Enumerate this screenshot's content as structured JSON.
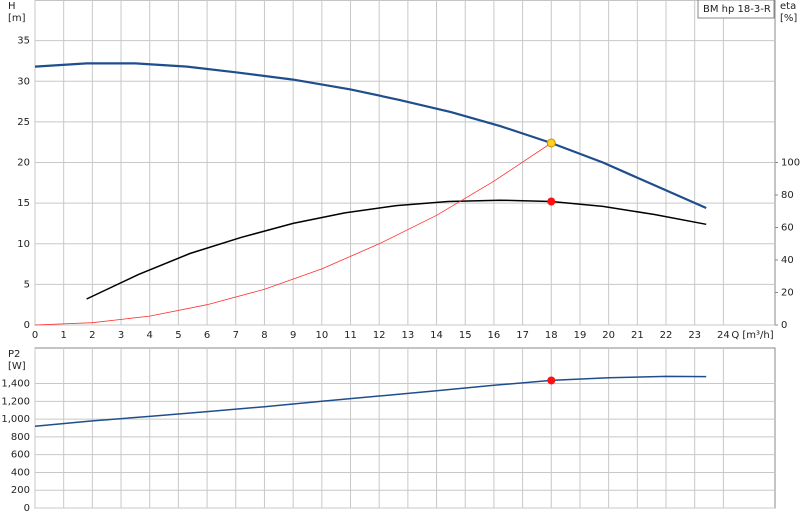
{
  "chart_data": [
    {
      "type": "line",
      "title": "BM hp  18-3-R",
      "y_label": "H",
      "y_unit": "[m]",
      "y2_label": "eta",
      "y2_unit": "[%]",
      "x_label": "Q [m³/h]",
      "xlim": [
        0,
        25.8
      ],
      "xticks": [
        0,
        1,
        2,
        3,
        4,
        5,
        6,
        7,
        8,
        9,
        10,
        11,
        12,
        13,
        14,
        15,
        16,
        17,
        18,
        19,
        20,
        21,
        22,
        23,
        24
      ],
      "ylim": [
        0,
        40
      ],
      "yticks": [
        0,
        5,
        10,
        15,
        20,
        25,
        30,
        35
      ],
      "y2lim": [
        0,
        200
      ],
      "y2ticks": [
        0,
        20,
        40,
        60,
        80,
        100
      ],
      "grid": true,
      "series": [
        {
          "color": "#1f4e8c",
          "width": 2.2,
          "x": [
            0,
            1.8,
            3.5,
            5.3,
            7,
            9,
            11,
            12.7,
            14.5,
            16.2,
            18,
            19.8,
            21.6,
            23.4
          ],
          "values": [
            31.8,
            32.2,
            32.2,
            31.8,
            31.1,
            30.2,
            29,
            27.7,
            26.2,
            24.5,
            22.4,
            20,
            17.2,
            14.4
          ]
        },
        {
          "color": "#000000",
          "width": 1.5,
          "axis": "y2",
          "x": [
            1.8,
            3.6,
            5.4,
            7.2,
            9,
            10.8,
            12.6,
            14.4,
            16.2,
            18,
            19.8,
            21.6,
            23.4
          ],
          "values": [
            16,
            31,
            44,
            54,
            62.5,
            69,
            73.5,
            76,
            76.8,
            76,
            73,
            68,
            62
          ]
        },
        {
          "color": "#ff3030",
          "width": 0.8,
          "x": [
            0,
            2,
            4,
            6,
            8,
            10,
            12,
            14,
            16,
            18
          ],
          "values": [
            0,
            0.28,
            1.1,
            2.5,
            4.4,
            6.9,
            10,
            13.5,
            17.7,
            22.4
          ]
        }
      ],
      "markers": [
        {
          "x": 18,
          "y": 22.4,
          "color": "#ffd21f"
        },
        {
          "x": 18,
          "y": 76,
          "axis": "y2",
          "color": "#ff1010"
        }
      ]
    },
    {
      "type": "line",
      "y_label": "P2",
      "y_unit": "[W]",
      "xlim": [
        0,
        25.8
      ],
      "xticks": [
        0,
        1,
        2,
        3,
        4,
        5,
        6,
        7,
        8,
        9,
        10,
        11,
        12,
        13,
        14,
        15,
        16,
        17,
        18,
        19,
        20,
        21,
        22,
        23,
        24
      ],
      "ylim": [
        0,
        1800
      ],
      "yticks": [
        0,
        200,
        400,
        600,
        800,
        {
          "value": 1000,
          "label": "1,000"
        },
        {
          "value": 1200,
          "label": "1,200"
        },
        {
          "value": 1400,
          "label": "1,400"
        }
      ],
      "grid": true,
      "series": [
        {
          "color": "#1f4e8c",
          "width": 1.5,
          "x": [
            0,
            2,
            4,
            6,
            8,
            10,
            12,
            14,
            16,
            18,
            20,
            22,
            23.4
          ],
          "values": [
            920,
            980,
            1030,
            1085,
            1140,
            1200,
            1260,
            1320,
            1380,
            1435,
            1465,
            1480,
            1478
          ]
        }
      ],
      "markers": [
        {
          "x": 18,
          "y": 1435,
          "color": "#ff1010"
        }
      ]
    }
  ]
}
